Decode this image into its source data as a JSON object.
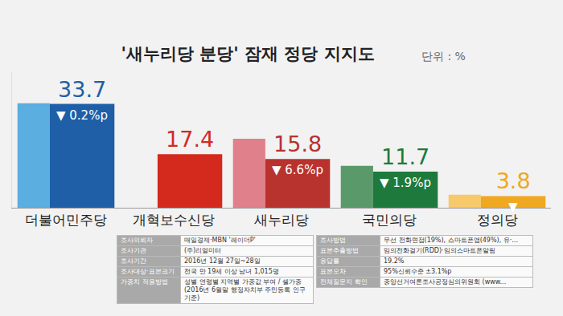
{
  "chart_data": {
    "type": "bar",
    "title": "'새누리당 분당' 잠재 정당 지지도",
    "subtitle": "단위 : %",
    "categories": [
      "더불어민주당",
      "개혁보수신당",
      "새누리당",
      "국민의당",
      "정의당"
    ],
    "series": [
      {
        "colors": [
          "#5aaee0",
          "#e88a80",
          "#e0808a",
          "#5a9a6a",
          "#f7c96a"
        ],
        "values": [
          33.9,
          null,
          22.4,
          13.6,
          4.2
        ]
      },
      {
        "colors": [
          "#1e5fa8",
          "#d42a1e",
          "#b8322e",
          "#1d7a3c",
          "#f0a820"
        ],
        "values": [
          33.7,
          17.4,
          15.8,
          11.7,
          3.8
        ],
        "data_labels": true,
        "change_labels": [
          "▼ 0.2%p",
          null,
          "▼ 6.6%p",
          "▼ 1.9%p",
          "▼"
        ]
      }
    ],
    "ylim": [
      0,
      44
    ],
    "yticks": [],
    "tick_labels": "x",
    "grid": false,
    "footnote": {
      "left": [
        [
          "조사의뢰자",
          "매일경제·MBN '레이더P'"
        ],
        [
          "조사기관",
          "(주)리얼미터"
        ],
        [
          "조사기간",
          "2016년 12월 27일~28일"
        ],
        [
          "조사대상·표본크기",
          "전국 만 19세 이상 남녀 1,015명"
        ],
        [
          "가중치 적용방법",
          "성별 연령별 지역별 가중값 부여 / 셀가중 (2016년 6월말 행정자치부 주민등록 인구 기준)"
        ]
      ],
      "right": [
        [
          "조사방법",
          "무선 전화면접(19%), 스마트폰앱(49%), 유·..."
        ],
        [
          "표본추출방법",
          "임의전화걸기(RDD)·임의스마트폰알림"
        ],
        [
          "응답률",
          "19.2%"
        ],
        [
          "표본오차",
          "95%신뢰수준 ±3.1%p"
        ],
        [
          "전체질문지 확인",
          "중앙선거여론조사공정심의위원회 (www..."
        ]
      ]
    }
  }
}
